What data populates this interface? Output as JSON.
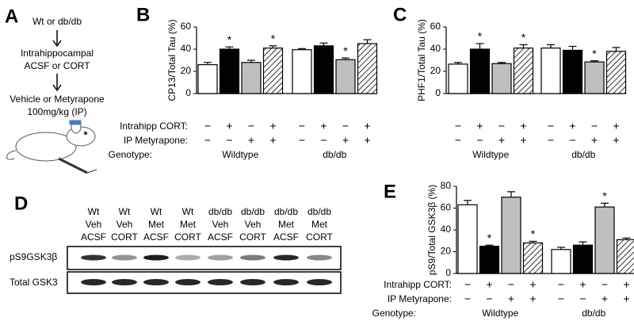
{
  "panel_a": {
    "letter": "A",
    "steps": [
      "Wt or db/db",
      "Intrahippocampal",
      "ACSF or CORT",
      "Vehicle or Metyrapone",
      "100mg/kg (IP)"
    ]
  },
  "panel_d": {
    "letter": "D",
    "lanes": [
      [
        "Wt",
        "Veh",
        "ACSF"
      ],
      [
        "Wt",
        "Veh",
        "CORT"
      ],
      [
        "Wt",
        "Met",
        "ACSF"
      ],
      [
        "Wt",
        "Met",
        "CORT"
      ],
      [
        "db/db",
        "Veh",
        "ACSF"
      ],
      [
        "db/db",
        "Veh",
        "CORT"
      ],
      [
        "db/db",
        "Met",
        "ACSF"
      ],
      [
        "db/db",
        "Met",
        "CORT"
      ]
    ],
    "rows": [
      "pS9GSK3β",
      "Total GSK3"
    ]
  },
  "chart_data": [
    {
      "type": "bar",
      "panel": "B",
      "ylabel": "CP13/Total Tau (%)",
      "ylim": [
        0,
        60
      ],
      "yticks": [
        0,
        20,
        40,
        60
      ],
      "groups": [
        "Wildtype",
        "db/db"
      ],
      "genotype_label": "Genotype:",
      "conditions": [
        {
          "label": "Intrahipp CORT:",
          "signs": [
            "−",
            "+",
            "−",
            "+",
            "−",
            "+",
            "−",
            "+"
          ]
        },
        {
          "label": "IP Metyrapone:",
          "signs": [
            "−",
            "−",
            "+",
            "+",
            "−",
            "−",
            "+",
            "+"
          ]
        }
      ],
      "series": [
        {
          "color": "#ffffff",
          "values": [
            26,
            39.5
          ],
          "errors": [
            2,
            1
          ],
          "stars": [
            null,
            null
          ]
        },
        {
          "color": "#000000",
          "values": [
            40,
            43
          ],
          "errors": [
            2,
            2.5
          ],
          "stars": [
            "*",
            null
          ]
        },
        {
          "color": "#bfbfbf",
          "values": [
            28,
            30.5
          ],
          "errors": [
            2,
            1.5
          ],
          "stars": [
            null,
            "*"
          ]
        },
        {
          "color": "#ffffff",
          "hatch": true,
          "values": [
            41,
            45
          ],
          "errors": [
            2,
            3.5
          ],
          "stars": [
            "*",
            null
          ]
        }
      ]
    },
    {
      "type": "bar",
      "panel": "C",
      "ylabel": "PHF1/Total Tau (%)",
      "ylim": [
        0,
        60
      ],
      "yticks": [
        0,
        20,
        40,
        60
      ],
      "groups": [
        "Wildtype",
        "db/db"
      ],
      "conditions": [
        {
          "signs": [
            "−",
            "+",
            "−",
            "+",
            "−",
            "+",
            "−",
            "+"
          ]
        },
        {
          "signs": [
            "−",
            "−",
            "+",
            "+",
            "−",
            "−",
            "+",
            "+"
          ]
        }
      ],
      "series": [
        {
          "color": "#ffffff",
          "values": [
            26.5,
            41
          ],
          "errors": [
            1.5,
            3
          ],
          "stars": [
            null,
            null
          ]
        },
        {
          "color": "#000000",
          "values": [
            40,
            39
          ],
          "errors": [
            5,
            3.5
          ],
          "stars": [
            "*",
            null
          ]
        },
        {
          "color": "#bfbfbf",
          "values": [
            27,
            28.5
          ],
          "errors": [
            1,
            1
          ],
          "stars": [
            null,
            "*"
          ]
        },
        {
          "color": "#ffffff",
          "hatch": true,
          "values": [
            41,
            38
          ],
          "errors": [
            3,
            3.5
          ],
          "stars": [
            "*",
            null
          ]
        }
      ]
    },
    {
      "type": "bar",
      "panel": "E",
      "ylabel": "pS9/Total GSK3β (%)",
      "ylim": [
        0,
        80
      ],
      "yticks": [
        0,
        20,
        40,
        60,
        80
      ],
      "groups": [
        "Wildtype",
        "db/db"
      ],
      "genotype_label": "Genotype:",
      "conditions": [
        {
          "label": "Intrahipp CORT:",
          "signs": [
            "−",
            "+",
            "−",
            "+",
            "−",
            "+",
            "−",
            "+"
          ]
        },
        {
          "label": "IP Metyrapone:",
          "signs": [
            "−",
            "−",
            "+",
            "+",
            "−",
            "−",
            "+",
            "+"
          ]
        }
      ],
      "series": [
        {
          "color": "#ffffff",
          "values": [
            63,
            22
          ],
          "errors": [
            4,
            2
          ],
          "stars": [
            null,
            null
          ]
        },
        {
          "color": "#000000",
          "values": [
            25,
            26
          ],
          "errors": [
            1,
            3
          ],
          "stars": [
            "*",
            null
          ]
        },
        {
          "color": "#bfbfbf",
          "values": [
            70,
            61
          ],
          "errors": [
            5,
            3.5
          ],
          "stars": [
            null,
            "*"
          ]
        },
        {
          "color": "#ffffff",
          "hatch": true,
          "values": [
            28,
            31
          ],
          "errors": [
            1.5,
            1.5
          ],
          "stars": [
            "*",
            null
          ]
        }
      ]
    }
  ]
}
